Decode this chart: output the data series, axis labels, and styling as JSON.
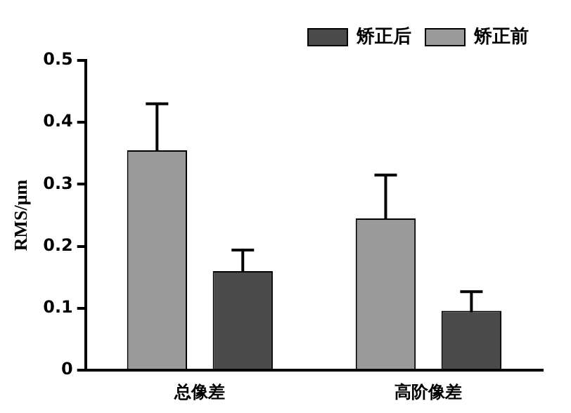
{
  "chart_data": {
    "type": "bar",
    "ylabel": "RMS/μm",
    "categories": [
      "总像差",
      "高阶像差"
    ],
    "series": [
      {
        "name": "矫正前",
        "color": "#9a9a9a",
        "values": [
          0.355,
          0.245
        ],
        "errors": [
          0.075,
          0.07
        ]
      },
      {
        "name": "矫正后",
        "color": "#4a4a4a",
        "values": [
          0.16,
          0.096
        ],
        "errors": [
          0.034,
          0.031
        ]
      }
    ],
    "ylim": [
      0,
      0.5
    ],
    "yticks": [
      0,
      0.1,
      0.2,
      0.3,
      0.4,
      0.5
    ],
    "grid": false,
    "legend": "top right"
  }
}
